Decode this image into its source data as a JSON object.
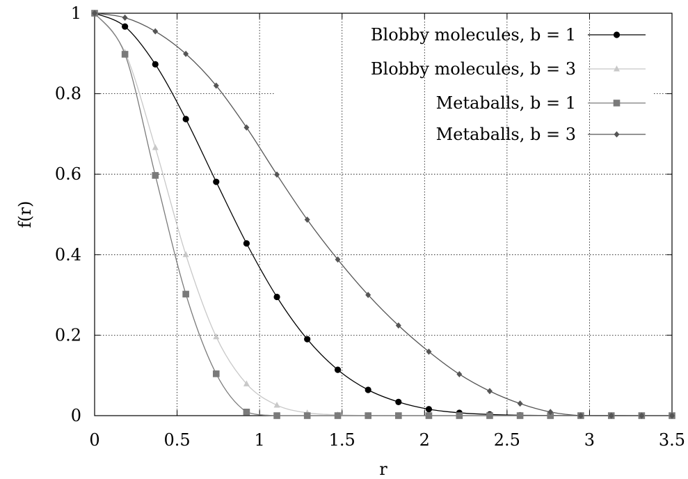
{
  "chart_data": {
    "type": "line",
    "xlabel": "r",
    "ylabel": "f(r)",
    "xlim": [
      0,
      3.5
    ],
    "ylim": [
      0,
      1
    ],
    "xticks": [
      0,
      0.5,
      1,
      1.5,
      2,
      2.5,
      3,
      3.5
    ],
    "xtick_labels": [
      "0",
      "0.5",
      "1",
      "1.5",
      "2",
      "2.5",
      "3",
      "3.5"
    ],
    "yticks": [
      0,
      0.2,
      0.4,
      0.6,
      0.8,
      1
    ],
    "ytick_labels": [
      "0",
      "0.2",
      "0.4",
      "0.6",
      "0.8",
      "1"
    ],
    "grid": true,
    "grid_style": "dotted",
    "legend_position": "top-right",
    "series": [
      {
        "name": "Blobby molecules, b = 1",
        "color": "#000000",
        "marker": "circle",
        "x": [
          0,
          0.184,
          0.368,
          0.553,
          0.737,
          0.921,
          1.105,
          1.289,
          1.474,
          1.658,
          1.842,
          2.026,
          2.211,
          2.395,
          2.579,
          2.763,
          2.947,
          3.132,
          3.316,
          3.5
        ],
        "y": [
          1.0,
          0.967,
          0.873,
          0.737,
          0.581,
          0.428,
          0.295,
          0.19,
          0.114,
          0.064,
          0.034,
          0.016,
          0.007,
          0.003,
          0.001,
          0.0005,
          0.0002,
          0.0001,
          0.0,
          0.0
        ]
      },
      {
        "name": "Blobby molecules, b = 3",
        "color": "#c8c8c8",
        "marker": "triangle",
        "x": [
          0,
          0.184,
          0.368,
          0.553,
          0.737,
          0.921,
          1.105,
          1.289,
          1.474,
          1.658,
          1.842,
          2.026,
          2.211,
          2.395,
          2.579,
          2.763,
          2.947,
          3.132,
          3.316,
          3.5
        ],
        "y": [
          1.0,
          0.903,
          0.666,
          0.4,
          0.196,
          0.079,
          0.026,
          0.007,
          0.002,
          0.0003,
          0.0,
          0.0,
          0.0,
          0.0,
          0.0,
          0.0,
          0.0,
          0.0,
          0.0,
          0.0
        ]
      },
      {
        "name": "Metaballs, b = 1",
        "color": "#7a7a7a",
        "marker": "square",
        "x": [
          0,
          0.184,
          0.368,
          0.553,
          0.737,
          0.921,
          1.105,
          1.289,
          1.474,
          1.658,
          1.842,
          2.026,
          2.211,
          2.395,
          2.579,
          2.763,
          2.947,
          3.132,
          3.316,
          3.5
        ],
        "y": [
          1.0,
          0.898,
          0.597,
          0.302,
          0.104,
          0.009,
          0.0,
          0.0,
          0.0,
          0.0,
          0.0,
          0.0,
          0.0,
          0.0,
          0.0,
          0.0,
          0.0,
          0.0,
          0.0,
          0.0
        ]
      },
      {
        "name": "Metaballs, b = 3",
        "color": "#555555",
        "marker": "diamond",
        "x": [
          0,
          0.184,
          0.368,
          0.553,
          0.737,
          0.921,
          1.105,
          1.289,
          1.474,
          1.658,
          1.842,
          2.026,
          2.211,
          2.395,
          2.579,
          2.763,
          2.947,
          3.132,
          3.316,
          3.5
        ],
        "y": [
          1.0,
          0.989,
          0.955,
          0.899,
          0.82,
          0.716,
          0.599,
          0.487,
          0.388,
          0.3,
          0.224,
          0.159,
          0.103,
          0.061,
          0.03,
          0.009,
          0.0,
          0.0,
          0.0,
          0.0
        ]
      }
    ]
  }
}
